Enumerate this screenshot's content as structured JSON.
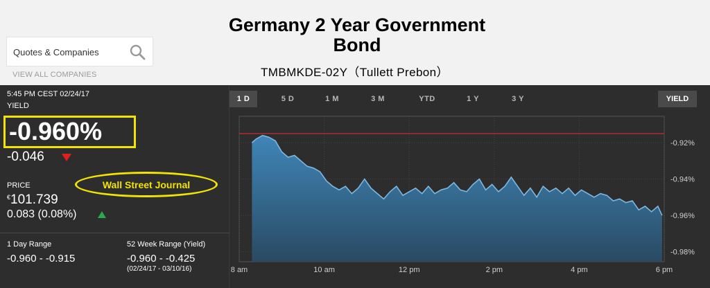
{
  "header": {
    "title_line1": "Germany 2 Year Government",
    "title_line2": "Bond",
    "subtitle": "TMBMKDE-02Y（Tullett Prebon）"
  },
  "search": {
    "placeholder": "Quotes & Companies",
    "view_all": "VIEW ALL COMPANIES"
  },
  "quote": {
    "timestamp": "5:45 PM CEST 02/24/17",
    "yield_label": "YIELD",
    "yield_value": "-0.960%",
    "yield_change": "-0.046",
    "price_label": "PRICE",
    "currency": "€",
    "price_value": "101.739",
    "price_change": "0.083  (0.08%)",
    "day_range_label": "1 Day Range",
    "day_range_value": "-0.960 - -0.915",
    "week52_label": "52 Week Range (Yield)",
    "week52_value": "-0.960 - -0.425",
    "week52_dates": "(02/24/17 - 03/10/16)"
  },
  "annotation": "Wall Street Journal",
  "tabs": [
    "1 D",
    "5 D",
    "1 M",
    "3 M",
    "YTD",
    "1 Y",
    "3 Y"
  ],
  "active_tab": "1 D",
  "yield_button": "YIELD",
  "colors": {
    "highlight": "#f2e300",
    "down": "#e0201b",
    "up": "#2da84a",
    "line": "#7fb8e0",
    "area_top": "#3f86b8",
    "area_bottom": "#2a4a63",
    "ref_line": "#c0283a"
  },
  "chart_data": {
    "type": "area",
    "x_tick_labels": [
      "8 am",
      "10 am",
      "12 pm",
      "2 pm",
      "4 pm",
      "6 pm"
    ],
    "x_ticks_hours": [
      8,
      10,
      12,
      14,
      16,
      18
    ],
    "y_tick_labels": [
      "-0.92%",
      "-0.94%",
      "-0.96%",
      "-0.98%"
    ],
    "y_ticks": [
      -0.92,
      -0.94,
      -0.96,
      -0.98
    ],
    "ylim": [
      -0.9855,
      -0.9055
    ],
    "xlim": [
      8,
      18
    ],
    "reference_line": -0.915,
    "series": [
      {
        "x": [
          8.3,
          8.4,
          8.55,
          8.7,
          8.85,
          9.0,
          9.15,
          9.3,
          9.45,
          9.6,
          9.75,
          9.9,
          10.05,
          10.2,
          10.35,
          10.5,
          10.65,
          10.8,
          10.95,
          11.1,
          11.25,
          11.4,
          11.55,
          11.7,
          11.85,
          12.0,
          12.15,
          12.3,
          12.45,
          12.6,
          12.75,
          12.9,
          13.05,
          13.2,
          13.35,
          13.5,
          13.65,
          13.8,
          13.95,
          14.1,
          14.25,
          14.4,
          14.55,
          14.7,
          14.85,
          15.0,
          15.15,
          15.3,
          15.45,
          15.6,
          15.75,
          15.9,
          16.05,
          16.2,
          16.35,
          16.5,
          16.65,
          16.8,
          16.95,
          17.1,
          17.25,
          17.4,
          17.55,
          17.7,
          17.85,
          17.95
        ],
        "y": [
          -0.92,
          -0.918,
          -0.916,
          -0.917,
          -0.919,
          -0.925,
          -0.928,
          -0.927,
          -0.93,
          -0.933,
          -0.934,
          -0.936,
          -0.941,
          -0.944,
          -0.946,
          -0.944,
          -0.948,
          -0.945,
          -0.94,
          -0.945,
          -0.948,
          -0.951,
          -0.947,
          -0.944,
          -0.949,
          -0.947,
          -0.945,
          -0.948,
          -0.944,
          -0.948,
          -0.946,
          -0.945,
          -0.942,
          -0.946,
          -0.947,
          -0.943,
          -0.94,
          -0.946,
          -0.943,
          -0.947,
          -0.944,
          -0.939,
          -0.944,
          -0.949,
          -0.945,
          -0.95,
          -0.944,
          -0.947,
          -0.945,
          -0.948,
          -0.945,
          -0.949,
          -0.946,
          -0.948,
          -0.95,
          -0.948,
          -0.949,
          -0.952,
          -0.951,
          -0.953,
          -0.952,
          -0.957,
          -0.955,
          -0.958,
          -0.955,
          -0.96
        ]
      }
    ]
  }
}
